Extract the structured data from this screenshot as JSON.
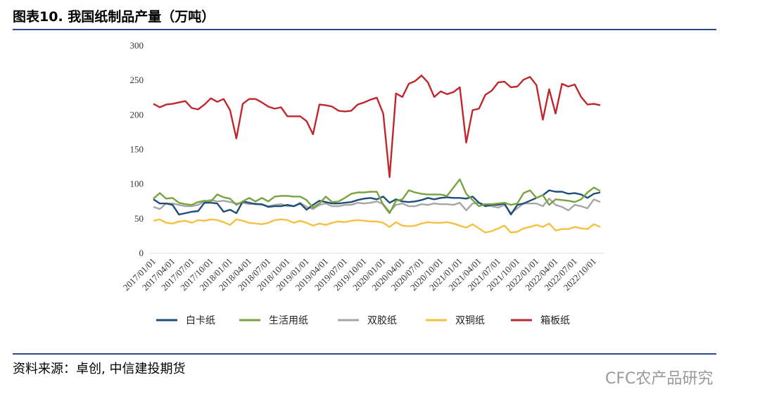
{
  "header": {
    "title": "图表10. 我国纸制品产量（万吨）"
  },
  "chart_data": {
    "type": "line",
    "categories": [
      "2017/01/01",
      null,
      null,
      "2017/04/01",
      null,
      null,
      "2017/07/01",
      null,
      null,
      "2017/10/01",
      null,
      null,
      "2018/01/01",
      null,
      null,
      "2018/04/01",
      null,
      null,
      "2018/07/01",
      null,
      null,
      "2018/10/01",
      null,
      null,
      "2019/01/01",
      null,
      null,
      "2019/04/01",
      null,
      null,
      "2019/07/01",
      null,
      null,
      "2019/10/01",
      null,
      null,
      "2020/01/01",
      null,
      null,
      "2020/04/01",
      null,
      null,
      "2020/07/01",
      null,
      null,
      "2020/10/01",
      null,
      null,
      "2021/01/01",
      null,
      null,
      "2021/04/01",
      null,
      null,
      "2021/07/01",
      null,
      null,
      "2021/10/01",
      null,
      null,
      "2022/01/01",
      null,
      null,
      "2022/04/01",
      null,
      null,
      "2022/07/01",
      null,
      null,
      "2022/10/01",
      null
    ],
    "series": [
      {
        "name": "白卡纸",
        "color": "#1f4e79",
        "values": [
          78,
          72,
          72,
          70,
          56,
          58,
          60,
          61,
          73,
          73,
          72,
          60,
          63,
          58,
          75,
          73,
          71,
          71,
          67,
          68,
          68,
          70,
          68,
          72,
          63,
          70,
          76,
          74,
          72,
          72,
          73,
          74,
          77,
          79,
          80,
          78,
          82,
          73,
          78,
          75,
          74,
          75,
          77,
          80,
          78,
          80,
          81,
          80,
          80,
          79,
          82,
          73,
          68,
          70,
          70,
          72,
          56,
          70,
          72,
          76,
          80,
          84,
          91,
          89,
          89,
          86,
          87,
          85,
          80,
          86,
          88
        ]
      },
      {
        "name": "生活用纸",
        "color": "#77a440",
        "values": [
          79,
          87,
          79,
          80,
          73,
          71,
          70,
          74,
          76,
          75,
          85,
          81,
          79,
          70,
          75,
          80,
          75,
          80,
          75,
          82,
          83,
          83,
          82,
          82,
          77,
          66,
          72,
          82,
          74,
          75,
          80,
          86,
          88,
          88,
          89,
          89,
          70,
          58,
          76,
          78,
          91,
          88,
          86,
          85,
          85,
          85,
          83,
          95,
          107,
          86,
          77,
          68,
          71,
          71,
          72,
          73,
          70,
          72,
          87,
          91,
          80,
          84,
          70,
          78,
          77,
          76,
          74,
          78,
          88,
          95,
          90
        ]
      },
      {
        "name": "双胶纸",
        "color": "#a6a6a6",
        "values": [
          67,
          64,
          72,
          72,
          70,
          68,
          68,
          70,
          75,
          77,
          75,
          76,
          74,
          72,
          73,
          71,
          72,
          70,
          68,
          70,
          71,
          68,
          68,
          73,
          67,
          64,
          70,
          72,
          68,
          68,
          70,
          70,
          73,
          72,
          73,
          75,
          71,
          60,
          70,
          72,
          68,
          68,
          71,
          70,
          72,
          71,
          71,
          70,
          73,
          62,
          72,
          73,
          70,
          68,
          66,
          70,
          58,
          65,
          72,
          72,
          72,
          68,
          79,
          70,
          67,
          62,
          70,
          68,
          65,
          78,
          74
        ]
      },
      {
        "name": "双铜纸",
        "color": "#f4c142",
        "values": [
          47,
          49,
          44,
          43,
          46,
          47,
          44,
          48,
          47,
          49,
          48,
          45,
          41,
          49,
          47,
          44,
          43,
          42,
          44,
          48,
          49,
          48,
          44,
          47,
          44,
          40,
          43,
          41,
          44,
          46,
          45,
          47,
          48,
          47,
          46,
          46,
          44,
          38,
          45,
          40,
          39,
          40,
          43,
          45,
          44,
          44,
          45,
          43,
          40,
          37,
          42,
          36,
          30,
          32,
          36,
          40,
          30,
          31,
          36,
          38,
          41,
          38,
          43,
          33,
          35,
          35,
          38,
          36,
          35,
          42,
          38
        ]
      },
      {
        "name": "箱板纸",
        "color": "#c0272d",
        "values": [
          216,
          211,
          215,
          216,
          218,
          220,
          210,
          208,
          215,
          224,
          219,
          223,
          207,
          166,
          216,
          223,
          223,
          218,
          212,
          209,
          211,
          198,
          198,
          198,
          191,
          172,
          215,
          214,
          212,
          206,
          205,
          206,
          215,
          218,
          222,
          225,
          202,
          110,
          231,
          226,
          245,
          249,
          257,
          247,
          226,
          234,
          230,
          233,
          240,
          160,
          207,
          209,
          229,
          235,
          247,
          248,
          240,
          241,
          251,
          255,
          243,
          193,
          237,
          202,
          245,
          241,
          244,
          226,
          215,
          216,
          214
        ]
      }
    ],
    "ylim": [
      0,
      300
    ],
    "yticks": [
      0,
      50,
      100,
      150,
      200,
      250,
      300
    ]
  },
  "footer": {
    "source": "资料来源：卓创, 中信建投期货",
    "watermark": "CFC农产品研究"
  }
}
